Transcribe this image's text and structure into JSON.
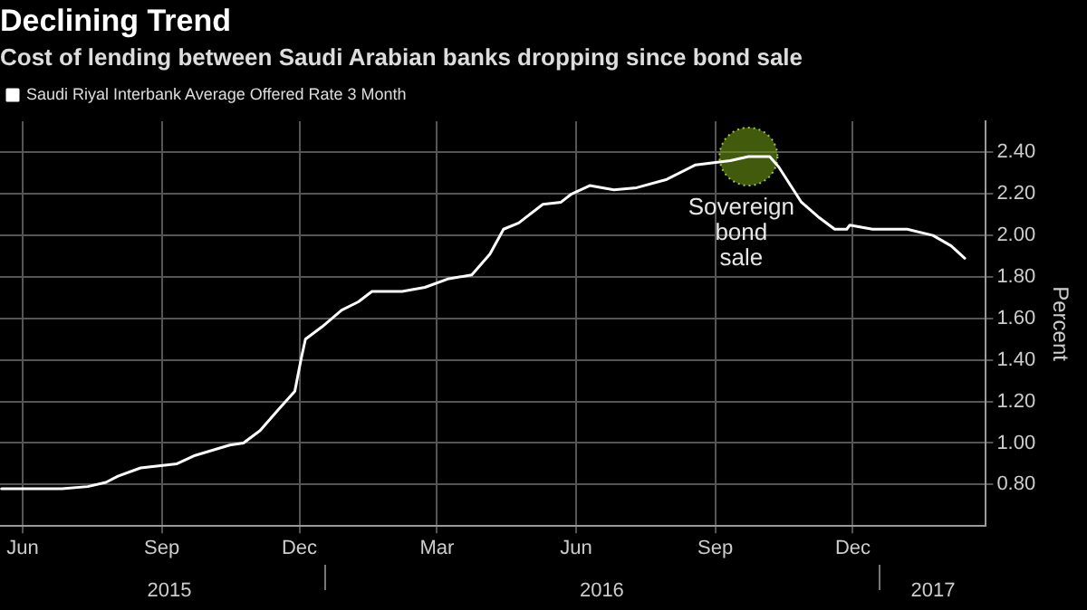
{
  "chart_data": {
    "type": "line",
    "title": "Declining Trend",
    "subtitle": "Cost of lending between Saudi Arabian banks dropping since bond sale",
    "ylabel": "Percent",
    "x": [
      "2015-06-01",
      "2015-07-11",
      "2015-07-28",
      "2015-08-09",
      "2015-08-17",
      "2015-09-01",
      "2015-09-25",
      "2015-10-07",
      "2015-10-30",
      "2015-11-08",
      "2015-11-19",
      "2015-12-01",
      "2015-12-12",
      "2015-12-16",
      "2015-12-19",
      "2015-12-30",
      "2016-01-12",
      "2016-01-23",
      "2016-02-01",
      "2016-02-21",
      "2016-03-07",
      "2016-03-22",
      "2016-04-07",
      "2016-04-19",
      "2016-04-28",
      "2016-05-08",
      "2016-05-24",
      "2016-06-05",
      "2016-06-12",
      "2016-06-24",
      "2016-07-10",
      "2016-07-25",
      "2016-08-14",
      "2016-09-02",
      "2016-09-25",
      "2016-10-07",
      "2016-10-21",
      "2016-10-27",
      "2016-11-11",
      "2016-11-22",
      "2016-12-03",
      "2016-12-11",
      "2016-12-13",
      "2016-12-28",
      "2017-01-20",
      "2017-02-06",
      "2017-02-18",
      "2017-02-27"
    ],
    "series": [
      {
        "name": "Saudi Riyal Interbank Average Offered Rate 3 Month",
        "color": "#ffffff",
        "values": [
          0.78,
          0.78,
          0.79,
          0.81,
          0.84,
          0.88,
          0.9,
          0.94,
          0.99,
          1.0,
          1.06,
          1.16,
          1.25,
          1.4,
          1.5,
          1.56,
          1.64,
          1.68,
          1.73,
          1.73,
          1.75,
          1.79,
          1.81,
          1.91,
          2.03,
          2.06,
          2.15,
          2.16,
          2.2,
          2.24,
          2.22,
          2.23,
          2.27,
          2.34,
          2.36,
          2.38,
          2.38,
          2.33,
          2.16,
          2.09,
          2.03,
          2.03,
          2.05,
          2.03,
          2.03,
          2.0,
          1.95,
          1.89
        ]
      }
    ],
    "xlim": [
      "2015-05-31",
      "2017-03-13"
    ],
    "xticks": [
      {
        "value": "2015-06-15",
        "label": "Jun"
      },
      {
        "value": "2015-09-15",
        "label": "Sep"
      },
      {
        "value": "2015-12-15",
        "label": "Dec"
      },
      {
        "value": "2016-03-15",
        "label": "Mar"
      },
      {
        "value": "2016-06-15",
        "label": "Jun"
      },
      {
        "value": "2016-09-15",
        "label": "Sep"
      },
      {
        "value": "2016-12-15",
        "label": "Dec"
      }
    ],
    "x2lim": [
      "2015-05-31",
      "2017-03-13"
    ],
    "x2ticks": [
      {
        "value": "2015-09-20",
        "label": "2015"
      },
      {
        "value": "2016-07-02",
        "label": "2016"
      },
      {
        "value": "2017-02-06",
        "label": "2017"
      }
    ],
    "ylim": [
      0.6,
      2.55
    ],
    "yticks": [
      {
        "value": 0.8,
        "label": "0.80"
      },
      {
        "value": 1.0,
        "label": "1.00"
      },
      {
        "value": 1.2,
        "label": "1.20"
      },
      {
        "value": 1.4,
        "label": "1.40"
      },
      {
        "value": 1.6,
        "label": "1.60"
      },
      {
        "value": 1.8,
        "label": "1.80"
      },
      {
        "value": 2.0,
        "label": "2.00"
      },
      {
        "value": 2.2,
        "label": "2.20"
      },
      {
        "value": 2.4,
        "label": "2.40"
      }
    ],
    "annotations": [
      {
        "text": "Sovereign bond sale",
        "x": "2016-10-07",
        "y": 2.38
      }
    ],
    "grid": true,
    "legend": "top left"
  }
}
